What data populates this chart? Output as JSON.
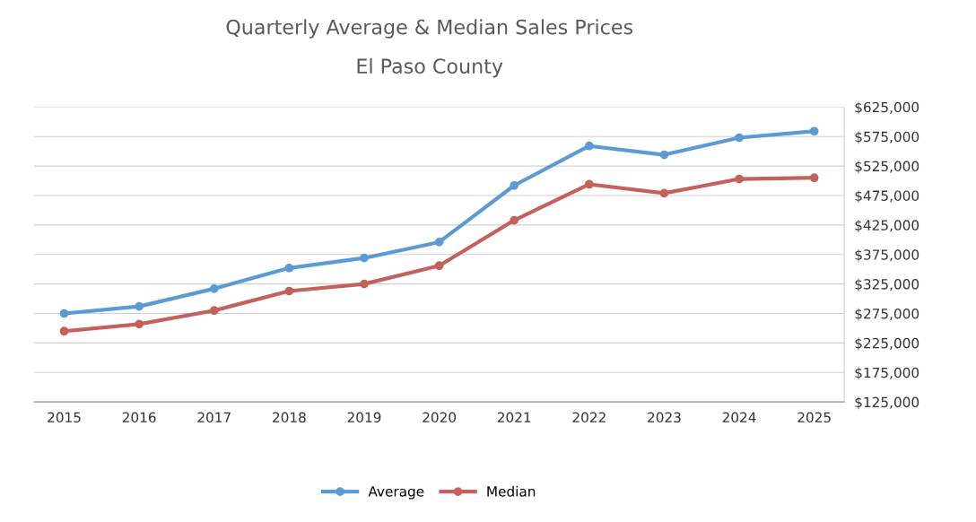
{
  "chart_data": {
    "type": "line",
    "title": "Quarterly Average & Median Sales Prices",
    "subtitle": "El Paso County",
    "categories": [
      "2015",
      "2016",
      "2017",
      "2018",
      "2019",
      "2020",
      "2021",
      "2022",
      "2023",
      "2024",
      "2025"
    ],
    "series": [
      {
        "name": "Average",
        "color": "#5b9bd5",
        "values": [
          275000,
          287000,
          317000,
          352000,
          369000,
          396000,
          492000,
          559000,
          544000,
          573000,
          584000
        ]
      },
      {
        "name": "Median",
        "color": "#c5615c",
        "values": [
          245000,
          257000,
          280000,
          313000,
          325000,
          356000,
          433000,
          494000,
          479000,
          503000,
          505000
        ]
      }
    ],
    "ylim": [
      125000,
      625000
    ],
    "yticks": [
      {
        "value": 125000,
        "label": "$125,000"
      },
      {
        "value": 175000,
        "label": "$175,000"
      },
      {
        "value": 225000,
        "label": "$225,000"
      },
      {
        "value": 275000,
        "label": "$275,000"
      },
      {
        "value": 325000,
        "label": "$325,000"
      },
      {
        "value": 375000,
        "label": "$375,000"
      },
      {
        "value": 425000,
        "label": "$425,000"
      },
      {
        "value": 475000,
        "label": "$475,000"
      },
      {
        "value": 525000,
        "label": "$525,000"
      },
      {
        "value": 575000,
        "label": "$575,000"
      },
      {
        "value": 625000,
        "label": "$625,000"
      }
    ],
    "grid": "y",
    "legend": "bottom",
    "marker": "circle",
    "line_style": "solid"
  }
}
